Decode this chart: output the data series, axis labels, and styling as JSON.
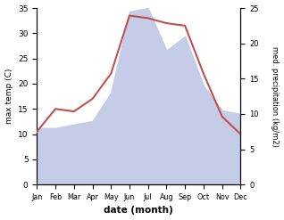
{
  "months": [
    "Jan",
    "Feb",
    "Mar",
    "Apr",
    "May",
    "Jun",
    "Jul",
    "Aug",
    "Sep",
    "Oct",
    "Nov",
    "Dec"
  ],
  "max_temp": [
    10.5,
    15.0,
    14.5,
    17.0,
    22.0,
    33.5,
    33.0,
    32.0,
    31.5,
    22.0,
    13.5,
    10.0
  ],
  "precipitation": [
    8.0,
    8.0,
    8.5,
    9.0,
    13.0,
    24.5,
    25.0,
    19.0,
    21.0,
    14.0,
    10.5,
    10.0
  ],
  "temp_color": "#c0504d",
  "precip_fill_color": "#c5cce8",
  "background_color": "#ffffff",
  "xlabel": "date (month)",
  "ylabel_left": "max temp (C)",
  "ylabel_right": "med. precipitation (kg/m2)",
  "ylim_left": [
    0,
    35
  ],
  "ylim_right": [
    0,
    25
  ],
  "yticks_left": [
    0,
    5,
    10,
    15,
    20,
    25,
    30,
    35
  ],
  "yticks_right": [
    0,
    5,
    10,
    15,
    20,
    25
  ]
}
